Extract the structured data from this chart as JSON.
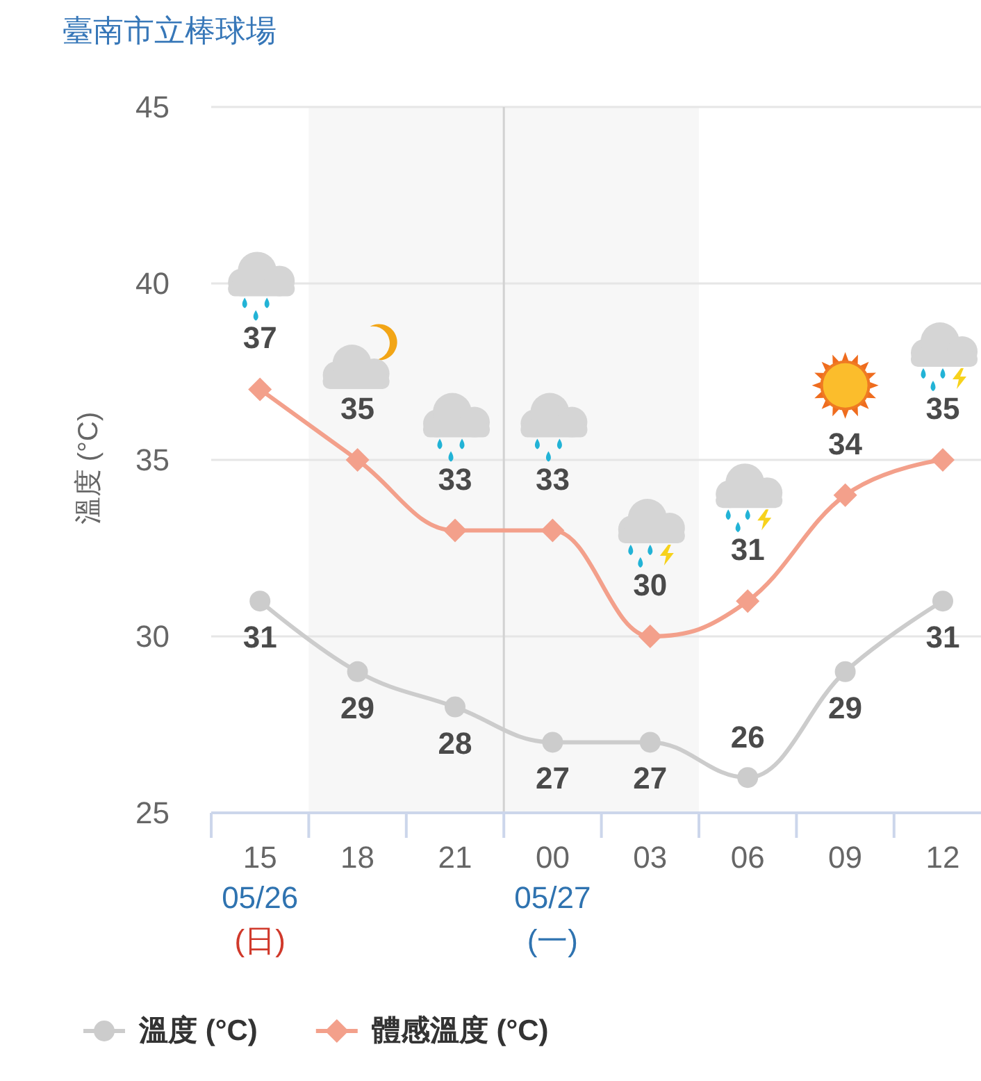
{
  "chart_data": {
    "type": "line",
    "title": "臺南市立棒球場",
    "ylabel": "溫度 (°C)",
    "categories": [
      "15",
      "18",
      "21",
      "00",
      "03",
      "06",
      "09",
      "12"
    ],
    "ylim": [
      25,
      45
    ],
    "yticks": [
      25,
      30,
      35,
      40,
      45
    ],
    "grid": "y",
    "series": [
      {
        "name": "溫度 (°C)",
        "color": "#cccccc",
        "marker": "circle",
        "values": [
          31,
          29,
          28,
          27,
          27,
          26,
          29,
          31
        ]
      },
      {
        "name": "體感溫度 (°C)",
        "color": "#f3a08b",
        "marker": "diamond",
        "values": [
          37,
          35,
          33,
          33,
          30,
          31,
          34,
          35
        ]
      }
    ],
    "data_labels": true,
    "legend": "bottom",
    "bands": [
      {
        "axis": "x",
        "from": "18",
        "to": "03",
        "color": "#f7f7f7"
      }
    ],
    "ref_lines": [
      {
        "axis": "x",
        "value": "00",
        "color": "#d2d2d2"
      }
    ],
    "annotations": [
      "05/26",
      "(日)",
      "05/27",
      "(一)"
    ]
  }
}
